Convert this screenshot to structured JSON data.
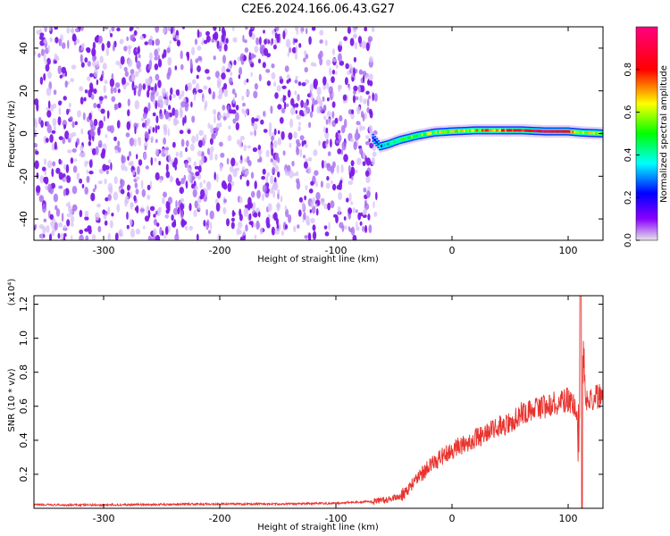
{
  "title": "C2E6.2024.166.06.43.G27",
  "chart_data": [
    {
      "type": "heatmap",
      "xlabel": "Height of straight line (km)",
      "ylabel": "Frequency (Hz)",
      "xlim": [
        -360,
        130
      ],
      "ylim": [
        -50,
        50
      ],
      "x_ticks": [
        -300,
        -200,
        -100,
        0,
        100
      ],
      "y_ticks": [
        -40,
        -20,
        0,
        20,
        40
      ],
      "colorbar": {
        "label": "Normalized spectral amplitude",
        "range": [
          0.0,
          1.0
        ],
        "ticks": [
          0.0,
          0.2,
          0.4,
          0.6,
          0.8
        ]
      },
      "noise_region": {
        "x_start": -360,
        "x_end": -68,
        "amplitude": 0.1
      },
      "signal_track": [
        {
          "x": -68,
          "freq": -2,
          "amplitude": 0.25
        },
        {
          "x": -62,
          "freq": -6,
          "amplitude": 0.3
        },
        {
          "x": -55,
          "freq": -5,
          "amplitude": 0.35
        },
        {
          "x": -45,
          "freq": -3,
          "amplitude": 0.4
        },
        {
          "x": -30,
          "freq": -1,
          "amplitude": 0.5
        },
        {
          "x": -15,
          "freq": 0.5,
          "amplitude": 0.55
        },
        {
          "x": 0,
          "freq": 1,
          "amplitude": 0.6
        },
        {
          "x": 20,
          "freq": 1.5,
          "amplitude": 0.65
        },
        {
          "x": 40,
          "freq": 1.5,
          "amplitude": 0.75
        },
        {
          "x": 60,
          "freq": 1.5,
          "amplitude": 0.85
        },
        {
          "x": 80,
          "freq": 1,
          "amplitude": 0.95
        },
        {
          "x": 100,
          "freq": 1,
          "amplitude": 0.85
        },
        {
          "x": 110,
          "freq": 0.5,
          "amplitude": 0.6
        },
        {
          "x": 130,
          "freq": 0,
          "amplitude": 0.55
        }
      ]
    },
    {
      "type": "line",
      "xlabel": "Height of straight line (km)",
      "ylabel": "SNR (10 * v/v)",
      "y_multiplier": "(x10⁴)",
      "xlim": [
        -360,
        130
      ],
      "ylim": [
        0,
        1.25
      ],
      "x_ticks": [
        -300,
        -200,
        -100,
        0,
        100
      ],
      "y_ticks": [
        0.2,
        0.4,
        0.6,
        0.8,
        1.0,
        1.2
      ],
      "series": [
        {
          "color": "#e8332e",
          "x": [
            -360,
            -300,
            -200,
            -150,
            -100,
            -70,
            -55,
            -45,
            -40,
            -30,
            -20,
            -10,
            0,
            10,
            20,
            30,
            40,
            50,
            60,
            70,
            80,
            90,
            100,
            105,
            108,
            110,
            112,
            115,
            120,
            130
          ],
          "y": [
            0.02,
            0.02,
            0.025,
            0.025,
            0.03,
            0.04,
            0.05,
            0.07,
            0.1,
            0.18,
            0.24,
            0.3,
            0.34,
            0.38,
            0.41,
            0.44,
            0.48,
            0.5,
            0.56,
            0.58,
            0.6,
            0.62,
            0.64,
            0.62,
            0.5,
            0.3,
            1.1,
            0.62,
            0.65,
            0.66
          ]
        }
      ]
    }
  ]
}
